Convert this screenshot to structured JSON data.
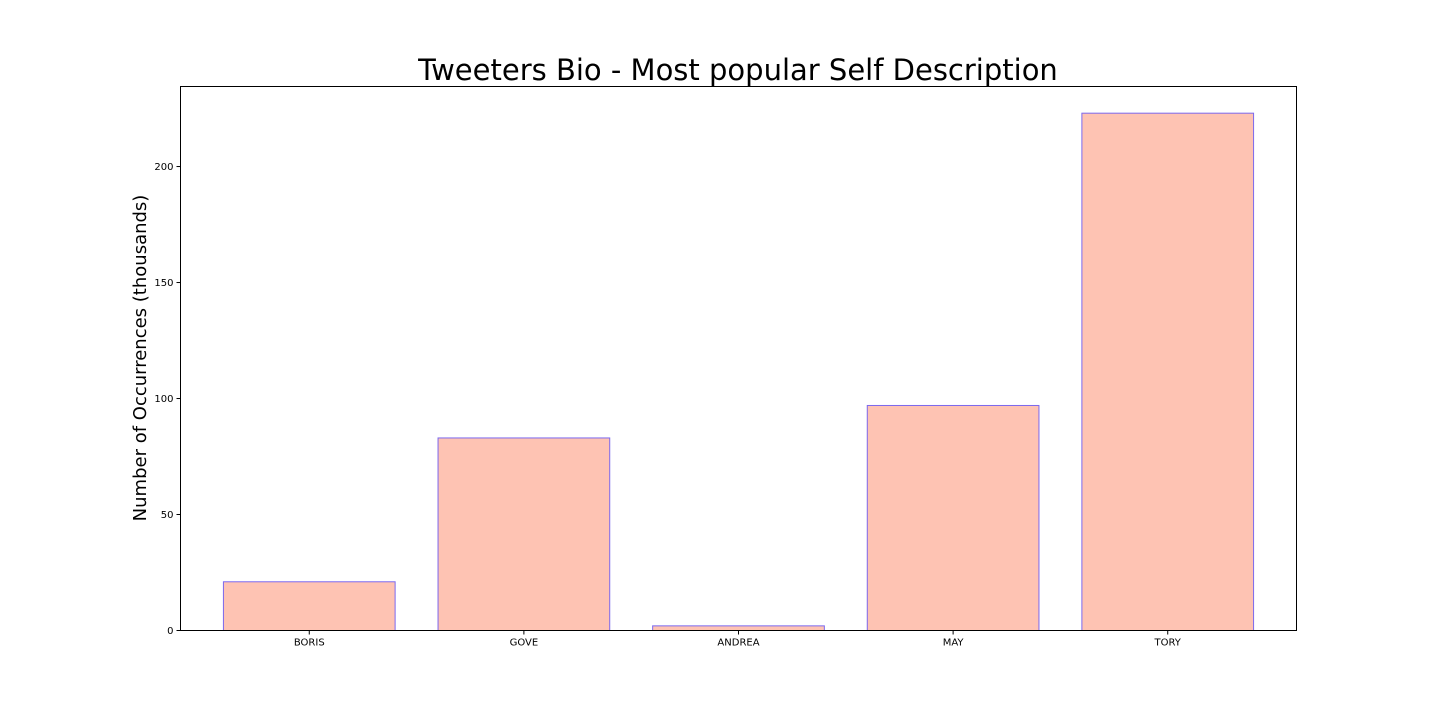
{
  "chart_data": {
    "type": "bar",
    "title": "Tweeters Bio - Most popular Self Description",
    "xlabel": "",
    "ylabel": "Number of Occurrences (thousands)",
    "categories": [
      "BORIS",
      "GOVE",
      "ANDREA",
      "MAY",
      "TORY"
    ],
    "values": [
      21,
      83,
      2,
      97,
      223
    ],
    "ylim": [
      0,
      234.5
    ],
    "yticks": [
      0,
      50,
      100,
      150,
      200
    ],
    "grid": false,
    "legend": "none",
    "colors": {
      "bar_fill": "#fec3b3",
      "bar_edge": "#7b68ee",
      "axis": "#000000"
    }
  }
}
